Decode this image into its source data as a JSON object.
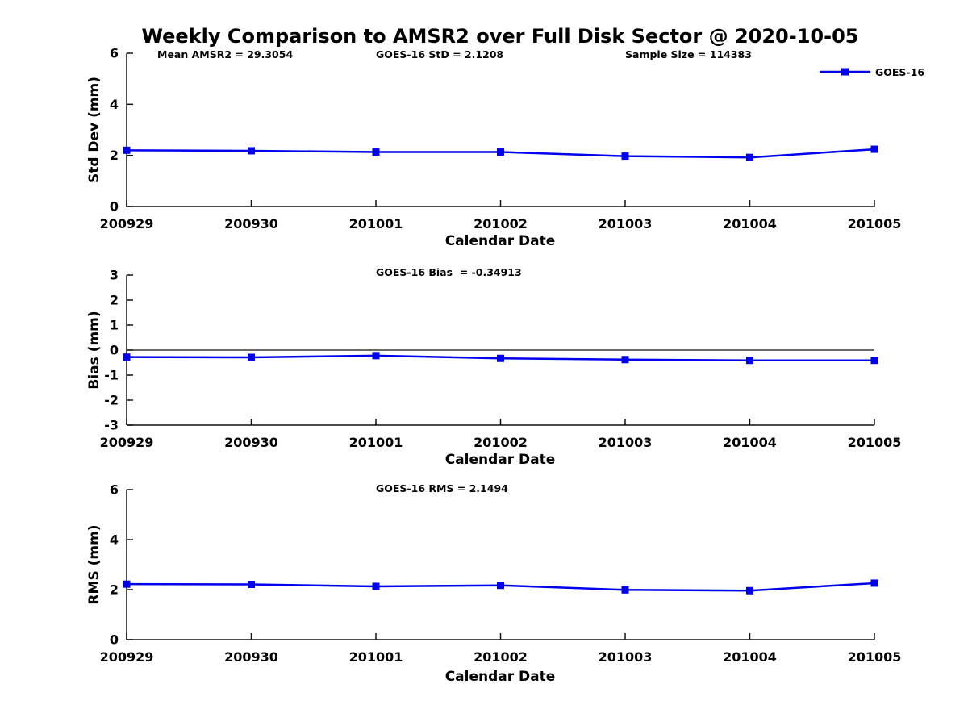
{
  "figure": {
    "title": "Weekly Comparison to AMSR2 over Full Disk Sector @ 2020-10-05",
    "background_color": "#ffffff",
    "accent_color": "#0000ee",
    "axis_color": "#111111"
  },
  "legend": {
    "label": "GOES-16",
    "color": "#0000ee",
    "marker": "filled-square",
    "position": "top-right-outside"
  },
  "chart_data": [
    {
      "id": "std-dev",
      "type": "line",
      "title": "",
      "xlabel": "Calendar Date",
      "ylabel": "Std Dev (mm)",
      "ylim": [
        0,
        6
      ],
      "yticks": [
        0,
        2,
        4,
        6
      ],
      "grid": false,
      "categories": [
        "200929",
        "200930",
        "201001",
        "201002",
        "201003",
        "201004",
        "201005"
      ],
      "series": [
        {
          "name": "GOES-16",
          "color": "#0000ee",
          "marker": "square",
          "values": [
            2.2,
            2.18,
            2.13,
            2.13,
            1.97,
            1.92,
            2.24
          ]
        }
      ],
      "annotations": [
        {
          "text": "Mean AMSR2 = 29.3054"
        },
        {
          "text": "GOES-16 StD = 2.1208"
        },
        {
          "text": "Sample Size = 114383"
        }
      ]
    },
    {
      "id": "bias",
      "type": "line",
      "title": "",
      "xlabel": "Calendar Date",
      "ylabel": "Bias (mm)",
      "ylim": [
        -3,
        3
      ],
      "yticks": [
        -3,
        -2,
        -1,
        0,
        1,
        2,
        3
      ],
      "grid": false,
      "zero_line": true,
      "categories": [
        "200929",
        "200930",
        "201001",
        "201002",
        "201003",
        "201004",
        "201005"
      ],
      "series": [
        {
          "name": "GOES-16",
          "color": "#0000ee",
          "marker": "square",
          "values": [
            -0.28,
            -0.29,
            -0.22,
            -0.33,
            -0.38,
            -0.41,
            -0.41
          ]
        }
      ],
      "annotations": [
        {
          "text": "GOES-16 Bias  = -0.34913"
        }
      ]
    },
    {
      "id": "rms",
      "type": "line",
      "title": "",
      "xlabel": "Calendar Date",
      "ylabel": "RMS (mm)",
      "ylim": [
        0,
        6
      ],
      "yticks": [
        0,
        2,
        4,
        6
      ],
      "grid": false,
      "categories": [
        "200929",
        "200930",
        "201001",
        "201002",
        "201003",
        "201004",
        "201005"
      ],
      "series": [
        {
          "name": "GOES-16",
          "color": "#0000ee",
          "marker": "square",
          "values": [
            2.22,
            2.21,
            2.13,
            2.17,
            1.99,
            1.96,
            2.26
          ]
        }
      ],
      "annotations": [
        {
          "text": "GOES-16 RMS = 2.1494"
        }
      ]
    }
  ]
}
